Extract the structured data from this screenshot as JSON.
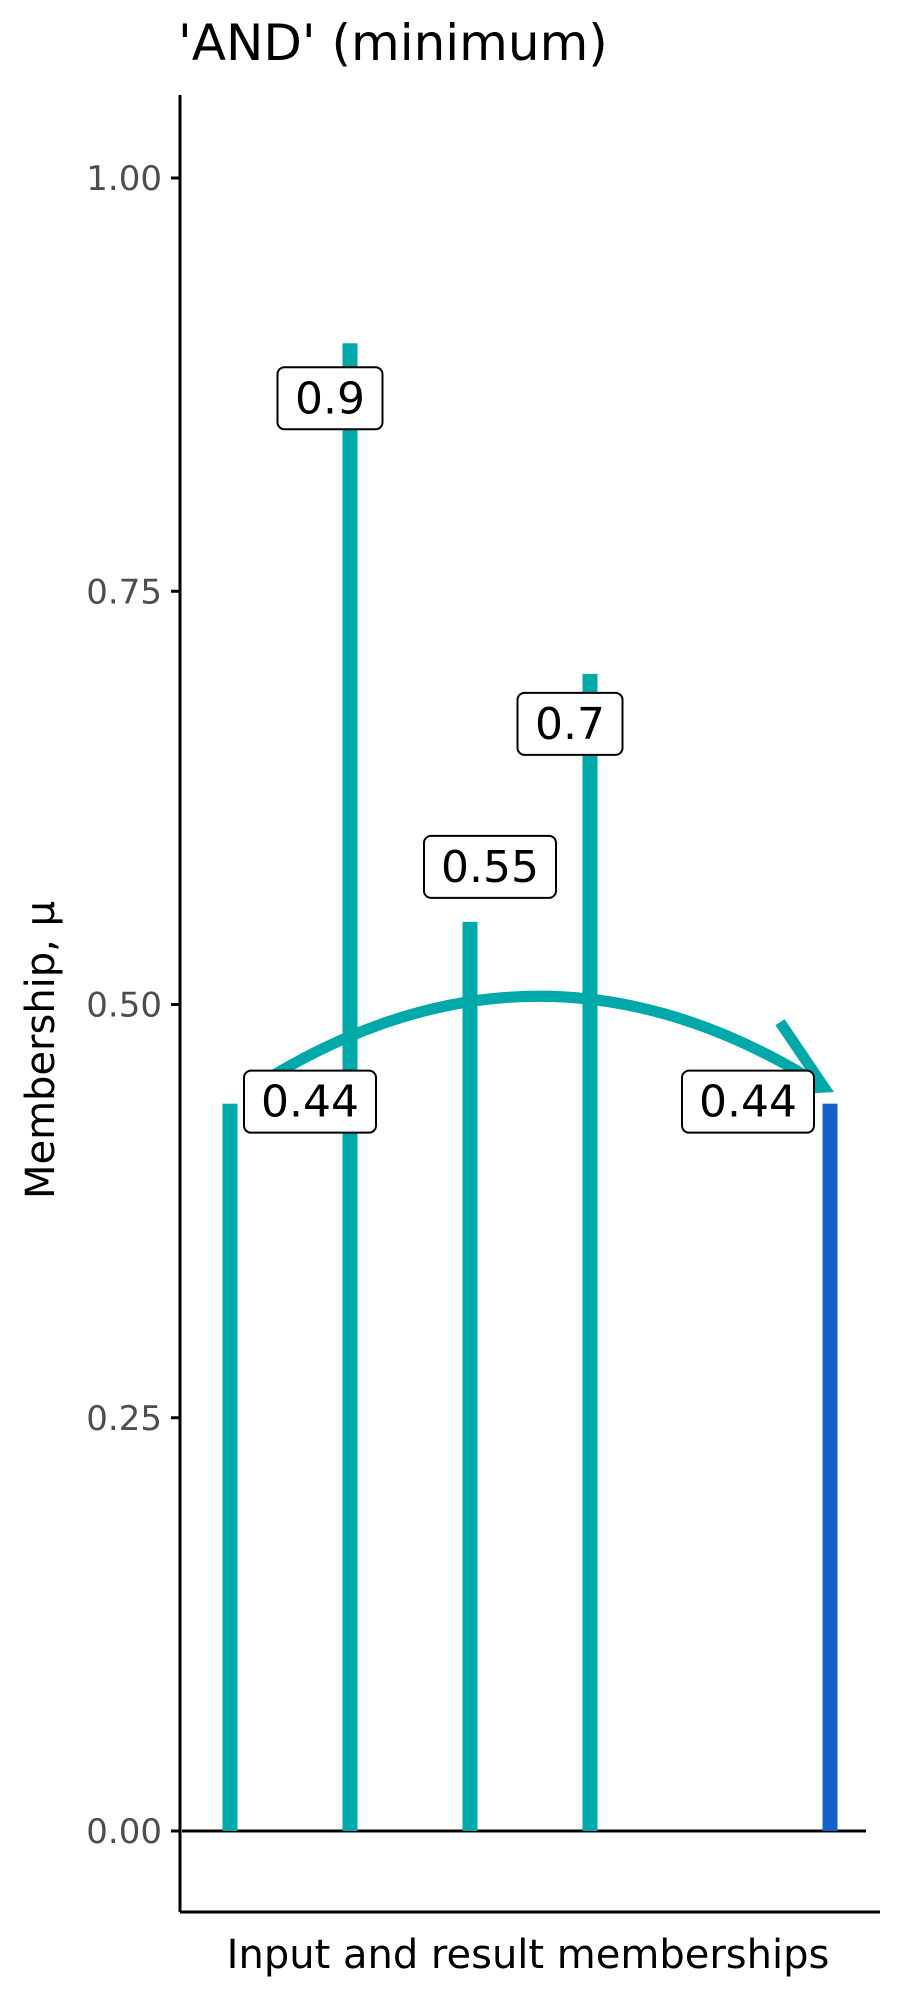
{
  "chart_data": {
    "type": "bar",
    "title": "'AND' (minimum)",
    "xlabel": "Input and result memberships",
    "ylabel": "Membership, μ",
    "ylim": [
      0,
      1
    ],
    "yticks": [
      0,
      0.25,
      0.5,
      0.75,
      1
    ],
    "ytick_labels": [
      "0.00",
      "0.25",
      "0.50",
      "0.75",
      "1.00"
    ],
    "grid": false,
    "legend": "none",
    "bars": [
      {
        "x": 1,
        "value": 0.44,
        "label": "0.44",
        "role": "input"
      },
      {
        "x": 2,
        "value": 0.9,
        "label": "0.9",
        "role": "input"
      },
      {
        "x": 3,
        "value": 0.55,
        "label": "0.55",
        "role": "input"
      },
      {
        "x": 4,
        "value": 0.7,
        "label": "0.7",
        "role": "input"
      },
      {
        "x": 6,
        "value": 0.44,
        "label": "0.44",
        "role": "result"
      }
    ],
    "xlim": [
      0.6,
      6.3
    ],
    "arrow": {
      "from_x": 1.2,
      "to_x": 5.95,
      "peak_y": 0.505,
      "end_y": 0.45
    },
    "colors": {
      "input": "#00A9A9",
      "result": "#1560C9",
      "arrow": "#00A9A9",
      "axis": "#000000",
      "tick_label": "#4d4d4d",
      "baseline": "#000000"
    }
  }
}
